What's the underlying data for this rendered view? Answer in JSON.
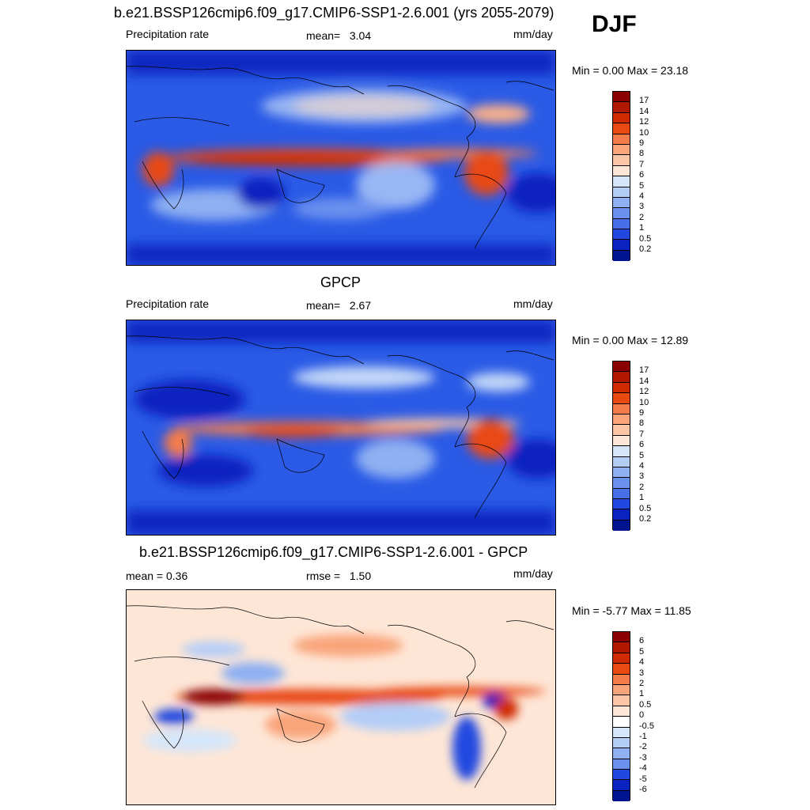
{
  "season": "DJF",
  "panels": [
    {
      "title": "b.e21.BSSP126cmip6.f09_g17.CMIP6-SSP1-2.6.001 (yrs 2055-2079)",
      "left_label": "Precipitation rate",
      "stat_label": "mean=",
      "stat_value": "3.04",
      "units": "mm/day",
      "minmax": "Min =   0.00 Max =  23.18"
    },
    {
      "title": "GPCP",
      "left_label": "Precipitation rate",
      "stat_label": "mean=",
      "stat_value": "2.67",
      "units": "mm/day",
      "minmax": "Min =   0.00 Max =  12.89"
    },
    {
      "title": "b.e21.BSSP126cmip6.f09_g17.CMIP6-SSP1-2.6.001 - GPCP",
      "left_label": "mean =   0.36",
      "stat_label": "rmse =",
      "stat_value": "1.50",
      "units": "mm/day",
      "minmax": "Min =  -5.77 Max =  11.85"
    }
  ],
  "precip_colorbar": {
    "labels": [
      "17",
      "14",
      "12",
      "10",
      "9",
      "8",
      "7",
      "6",
      "5",
      "4",
      "3",
      "2",
      "1",
      "0.5",
      "0.2"
    ],
    "colors": [
      "#8b0000",
      "#b01800",
      "#cf2a00",
      "#e84a12",
      "#f47b4a",
      "#f9a47a",
      "#fcc6a6",
      "#fee6d6",
      "#d6e6fa",
      "#b4cdf7",
      "#8fb0f2",
      "#6a91ee",
      "#4770e8",
      "#2148e0",
      "#0a22bf",
      "#001490"
    ]
  },
  "diff_colorbar": {
    "labels": [
      "6",
      "5",
      "4",
      "3",
      "2",
      "1",
      "0.5",
      "0",
      "-0.5",
      "-1",
      "-2",
      "-3",
      "-4",
      "-5",
      "-6"
    ],
    "colors": [
      "#8b0000",
      "#b01800",
      "#cf2a00",
      "#e84a12",
      "#f47b4a",
      "#f9a47a",
      "#fcc6a6",
      "#fee6d6",
      "#ffffff",
      "#d6e6fa",
      "#b4cdf7",
      "#8fb0f2",
      "#6a91ee",
      "#2148e0",
      "#0a22bf",
      "#001490"
    ]
  }
}
